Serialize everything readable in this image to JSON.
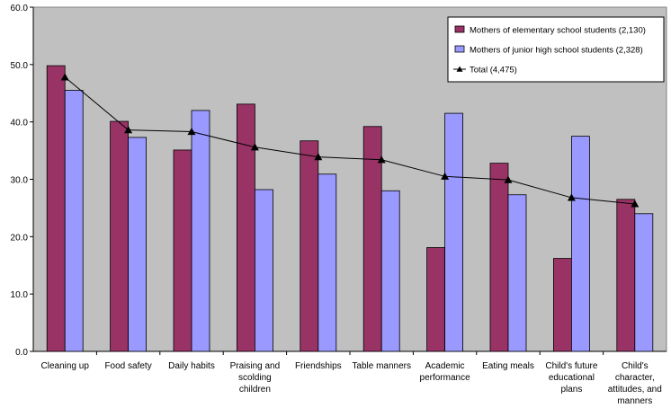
{
  "chart_data": {
    "type": "bar",
    "categories": [
      [
        "Cleaning up"
      ],
      [
        "Food safety"
      ],
      [
        "Daily habits"
      ],
      [
        "Praising and",
        "scolding",
        "children"
      ],
      [
        "Friendships"
      ],
      [
        "Table manners"
      ],
      [
        "Academic",
        "performance"
      ],
      [
        "Eating meals"
      ],
      [
        "Child's future",
        "educational",
        "plans"
      ],
      [
        "Child's",
        "character,",
        "attitudes, and",
        "manners"
      ]
    ],
    "series": [
      {
        "name": "Mothers of elementary school students (2,130)",
        "kind": "bar",
        "color": "#993366",
        "values": [
          49.8,
          40.1,
          35.1,
          43.1,
          36.7,
          39.2,
          18.1,
          32.8,
          16.2,
          26.5
        ]
      },
      {
        "name": "Mothers of junior high school students (2,328)",
        "kind": "bar",
        "color": "#9999ff",
        "values": [
          45.5,
          37.3,
          42.0,
          28.2,
          30.9,
          28.0,
          41.5,
          27.3,
          37.5,
          24.0
        ]
      },
      {
        "name": "Total (4,475)",
        "kind": "line",
        "color": "#000000",
        "values": [
          47.8,
          38.6,
          38.3,
          35.6,
          33.9,
          33.4,
          30.5,
          29.9,
          26.8,
          25.7
        ]
      }
    ],
    "y_ticks": [
      "0.0",
      "10.0",
      "20.0",
      "30.0",
      "40.0",
      "50.0",
      "60.0"
    ],
    "ylim": [
      0,
      60
    ],
    "plot_background": "#c0c0c0",
    "legend_position": "top-right"
  }
}
